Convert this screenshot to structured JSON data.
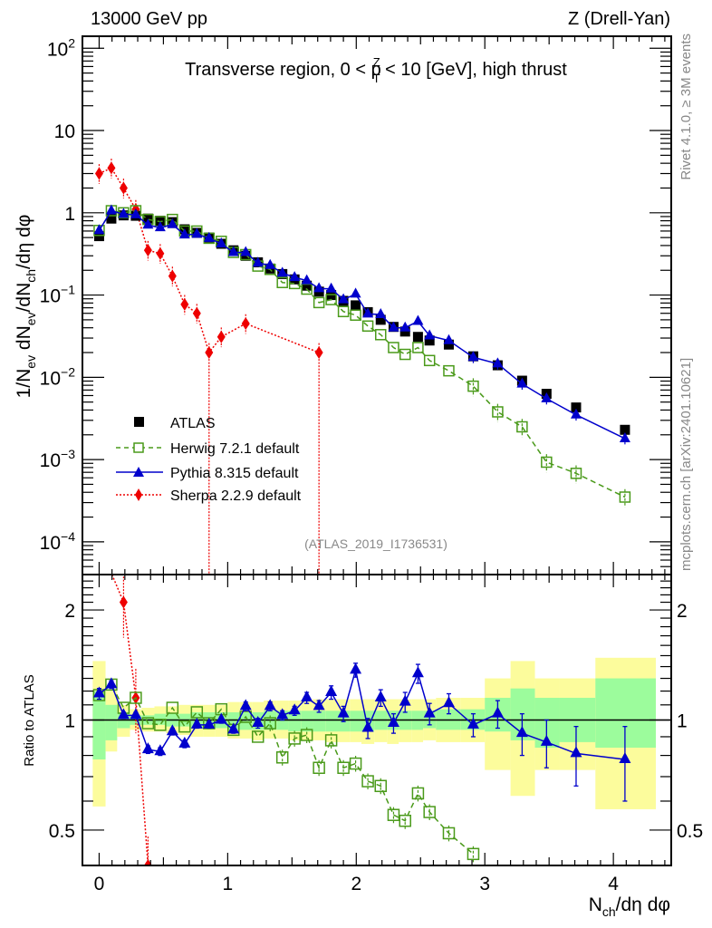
{
  "header": {
    "left": "13000 GeV pp",
    "right": "Z (Drell-Yan)"
  },
  "side_labels": {
    "rivet": "Rivet 4.1.0, ≥ 3M events",
    "mcplots": "mcplots.cern.ch [arXiv:2401.10621]"
  },
  "chart_data": [
    {
      "type": "line",
      "panel": "main",
      "title": "Transverse region, 0 < p_T^Z < 10 [GeV], high thrust",
      "title_parts": {
        "pre": "Transverse region, 0 < p",
        "sup": "Z",
        "sub": "T",
        "post": " < 10 [GeV], high thrust"
      },
      "analysis_tag": "(ATLAS_2019_I1736531)",
      "ylabel": "1/N_ev dN_ev/dN_ch/dη dφ",
      "ylabel_parts": [
        "1/N",
        "ev",
        " dN",
        "ev",
        "/dN",
        "ch",
        "/dη dφ"
      ],
      "yscale": "log",
      "ylim": [
        4e-05,
        140
      ],
      "xlim": [
        -0.13,
        4.45
      ],
      "yticks": [
        {
          "v": 100,
          "base": "10",
          "exp": "2"
        },
        {
          "v": 10,
          "base": "10",
          "exp": ""
        },
        {
          "v": 1,
          "base": "1",
          "exp": ""
        },
        {
          "v": 0.1,
          "base": "10",
          "exp": "−1"
        },
        {
          "v": 0.01,
          "base": "10",
          "exp": "−2"
        },
        {
          "v": 0.001,
          "base": "10",
          "exp": "−3"
        },
        {
          "v": 0.0001,
          "base": "10",
          "exp": "−4"
        }
      ],
      "legend": {
        "position": "bottom-left"
      },
      "x": [
        0.0,
        0.095,
        0.19,
        0.285,
        0.38,
        0.475,
        0.57,
        0.665,
        0.76,
        0.855,
        0.95,
        1.045,
        1.14,
        1.235,
        1.33,
        1.425,
        1.52,
        1.615,
        1.71,
        1.805,
        1.9,
        1.995,
        2.09,
        2.19,
        2.29,
        2.38,
        2.48,
        2.57,
        2.72,
        2.91,
        3.1,
        3.29,
        3.48,
        3.71,
        4.09
      ],
      "series": [
        {
          "name": "ATLAS",
          "style": "data",
          "color": "#000000",
          "values": [
            0.52,
            0.85,
            0.93,
            0.92,
            0.85,
            0.8,
            0.77,
            0.63,
            0.57,
            0.5,
            0.42,
            0.35,
            0.3,
            0.25,
            0.21,
            0.18,
            0.155,
            0.13,
            0.11,
            0.1,
            0.085,
            0.075,
            0.062,
            0.05,
            0.041,
            0.036,
            0.031,
            0.028,
            0.025,
            0.018,
            0.014,
            0.0091,
            0.0063,
            0.0043,
            0.0023
          ]
        },
        {
          "name": "Herwig 7.2.1 default",
          "style": "dashed",
          "color": "#4a9a1a",
          "values": [
            0.61,
            1.06,
            1.0,
            1.06,
            0.83,
            0.78,
            0.83,
            0.6,
            0.6,
            0.49,
            0.45,
            0.33,
            0.31,
            0.225,
            0.205,
            0.142,
            0.138,
            0.118,
            0.081,
            0.088,
            0.063,
            0.057,
            0.042,
            0.033,
            0.023,
            0.019,
            0.023,
            0.016,
            0.012,
            0.0078,
            0.0038,
            0.0025,
            0.00093,
            0.00068,
            0.00035
          ]
        },
        {
          "name": "Pythia 8.315 default",
          "style": "solid",
          "color": "#0000cc",
          "values": [
            0.61,
            1.06,
            0.96,
            0.95,
            0.71,
            0.66,
            0.72,
            0.54,
            0.55,
            0.49,
            0.42,
            0.33,
            0.33,
            0.245,
            0.23,
            0.185,
            0.164,
            0.15,
            0.12,
            0.119,
            0.088,
            0.103,
            0.059,
            0.058,
            0.04,
            0.04,
            0.048,
            0.032,
            0.028,
            0.0175,
            0.0146,
            0.0083,
            0.0055,
            0.0035,
            0.0018
          ]
        },
        {
          "name": "Sherpa 2.2.9 default",
          "style": "dotted",
          "color": "#ee0000",
          "x": [
            0.0,
            0.095,
            0.19,
            0.285,
            0.38,
            0.475,
            0.57,
            0.665,
            0.76,
            0.855,
            0.95,
            1.14,
            1.71
          ],
          "values": [
            3.0,
            3.5,
            2.0,
            1.1,
            0.35,
            0.32,
            0.17,
            0.077,
            0.06,
            0.02,
            0.031,
            0.045,
            0.02
          ]
        }
      ]
    },
    {
      "type": "line",
      "panel": "ratio",
      "ylabel": "Ratio to ATLAS",
      "xlabel": "N_ch/dη dφ",
      "xlabel_parts": [
        "N",
        "ch",
        "/dη dφ"
      ],
      "yscale": "log",
      "ylim": [
        0.4,
        2.5
      ],
      "xlim": [
        -0.13,
        4.45
      ],
      "xticks": [
        0,
        1,
        2,
        3,
        4
      ],
      "yticks": [
        0.5,
        1,
        2
      ],
      "bands": {
        "edges": [
          -0.05,
          0.05,
          0.14,
          0.24,
          0.33,
          0.43,
          0.52,
          0.62,
          0.71,
          0.81,
          0.9,
          1.0,
          1.09,
          1.19,
          1.28,
          1.38,
          1.47,
          1.57,
          1.66,
          1.76,
          1.85,
          1.95,
          2.04,
          2.14,
          2.24,
          2.33,
          2.43,
          2.52,
          2.62,
          2.81,
          3.0,
          3.2,
          3.39,
          3.58,
          3.86,
          4.33
        ],
        "stat_low": [
          0.78,
          0.88,
          0.95,
          0.97,
          0.97,
          0.97,
          0.96,
          0.96,
          0.95,
          0.95,
          0.95,
          0.94,
          0.94,
          0.94,
          0.94,
          0.94,
          0.93,
          0.93,
          0.93,
          0.93,
          0.93,
          0.93,
          0.93,
          0.94,
          0.94,
          0.94,
          0.94,
          0.95,
          0.94,
          0.94,
          0.93,
          0.88,
          0.84,
          0.87,
          0.84
        ],
        "stat_high": [
          1.2,
          1.1,
          1.05,
          1.03,
          1.03,
          1.04,
          1.04,
          1.04,
          1.05,
          1.05,
          1.05,
          1.05,
          1.05,
          1.05,
          1.06,
          1.06,
          1.06,
          1.06,
          1.06,
          1.06,
          1.06,
          1.06,
          1.06,
          1.06,
          1.06,
          1.06,
          1.06,
          1.06,
          1.07,
          1.07,
          1.15,
          1.22,
          1.15,
          1.15,
          1.3
        ],
        "total_low": [
          0.58,
          0.82,
          0.9,
          0.94,
          0.93,
          0.93,
          0.92,
          0.91,
          0.9,
          0.9,
          0.9,
          0.89,
          0.89,
          0.88,
          0.89,
          0.89,
          0.88,
          0.88,
          0.88,
          0.87,
          0.87,
          0.87,
          0.86,
          0.87,
          0.86,
          0.87,
          0.87,
          0.88,
          0.87,
          0.87,
          0.73,
          0.62,
          0.73,
          0.73,
          0.57
        ],
        "total_high": [
          1.45,
          1.2,
          1.1,
          1.07,
          1.08,
          1.09,
          1.09,
          1.1,
          1.1,
          1.1,
          1.1,
          1.12,
          1.12,
          1.12,
          1.13,
          1.13,
          1.13,
          1.13,
          1.14,
          1.14,
          1.14,
          1.14,
          1.14,
          1.14,
          1.14,
          1.14,
          1.14,
          1.14,
          1.15,
          1.15,
          1.3,
          1.45,
          1.3,
          1.3,
          1.48
        ],
        "stat_color": "#9cfc9c",
        "total_color": "#fcfc9c"
      },
      "x": [
        0.0,
        0.095,
        0.19,
        0.285,
        0.38,
        0.475,
        0.57,
        0.665,
        0.76,
        0.855,
        0.95,
        1.045,
        1.14,
        1.235,
        1.33,
        1.425,
        1.52,
        1.615,
        1.71,
        1.805,
        1.9,
        1.995,
        2.09,
        2.19,
        2.29,
        2.38,
        2.48,
        2.57,
        2.72,
        2.91,
        3.1,
        3.29,
        3.48,
        3.71,
        4.09
      ],
      "series": [
        {
          "name": "Herwig 7.2.1 default",
          "color": "#4a9a1a",
          "values": [
            1.17,
            1.25,
            1.08,
            1.15,
            0.98,
            0.97,
            1.08,
            0.96,
            1.05,
            0.98,
            1.07,
            0.94,
            1.02,
            0.9,
            0.98,
            0.79,
            0.89,
            0.91,
            0.74,
            0.88,
            0.74,
            0.76,
            0.68,
            0.66,
            0.55,
            0.53,
            0.63,
            0.56,
            0.49,
            0.43,
            null,
            null,
            null,
            null,
            null
          ]
        },
        {
          "name": "Pythia 8.315 default",
          "color": "#0000cc",
          "values": [
            1.18,
            1.25,
            1.03,
            1.03,
            0.83,
            0.82,
            0.93,
            0.86,
            0.97,
            0.97,
            1.0,
            0.94,
            1.09,
            0.98,
            1.09,
            1.03,
            1.06,
            1.15,
            1.09,
            1.19,
            1.04,
            1.37,
            0.95,
            1.15,
            0.98,
            1.12,
            1.34,
            1.04,
            1.11,
            0.97,
            1.04,
            0.92,
            0.87,
            0.81,
            0.78
          ],
          "err": [
            0.04,
            0.03,
            0.02,
            0.02,
            0.02,
            0.02,
            0.02,
            0.02,
            0.02,
            0.02,
            0.02,
            0.02,
            0.03,
            0.03,
            0.03,
            0.03,
            0.03,
            0.04,
            0.04,
            0.05,
            0.05,
            0.06,
            0.06,
            0.06,
            0.06,
            0.07,
            0.08,
            0.07,
            0.07,
            0.07,
            0.09,
            0.12,
            0.13,
            0.15,
            0.18
          ]
        },
        {
          "name": "Sherpa 2.2.9 default",
          "color": "#ee0000",
          "x": [
            0.19,
            0.285,
            0.38
          ],
          "values": [
            2.1,
            1.15,
            0.4
          ]
        }
      ]
    }
  ]
}
